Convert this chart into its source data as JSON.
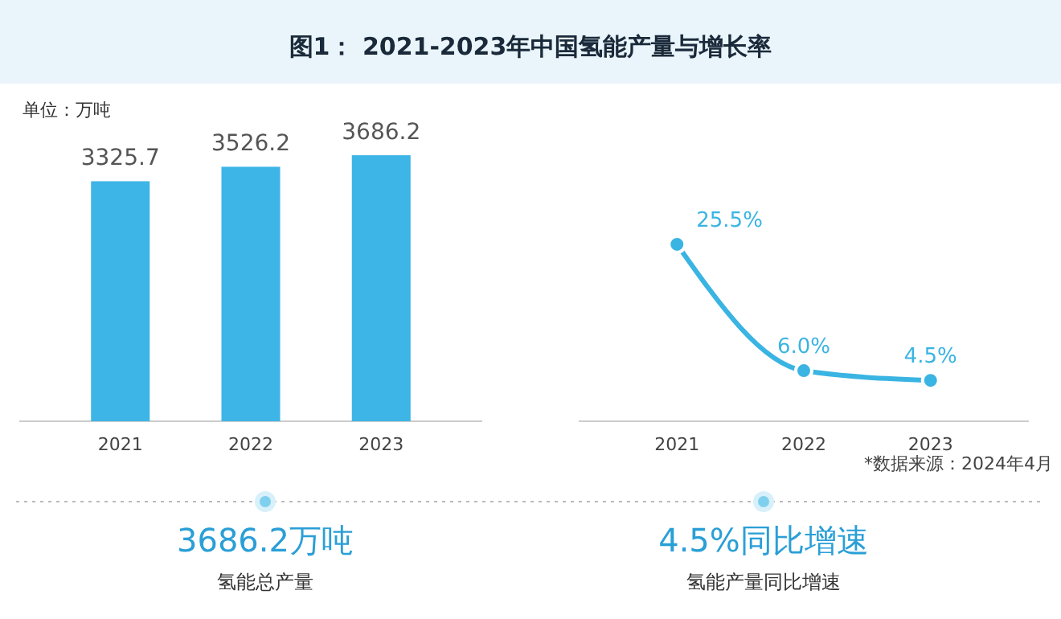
{
  "chart_data": [
    {
      "type": "bar",
      "title": "图1： 2021-2023年中国氢能产量与增长率",
      "ylabel": "单位：万吨",
      "categories": [
        "2021",
        "2022",
        "2023"
      ],
      "values": [
        3325.7,
        3526.2,
        3686.2
      ],
      "color": "#3db5e6",
      "tick_labels": "x",
      "data_labels": true
    },
    {
      "type": "line",
      "categories": [
        "2021",
        "2022",
        "2023"
      ],
      "values": [
        25.5,
        6.0,
        4.5
      ],
      "value_labels": [
        "25.5%",
        "6.0%",
        "4.5%"
      ],
      "color": "#3ab4e2",
      "tick_labels": "x",
      "marker": "circle",
      "line_style": "solid",
      "annotations": [
        "*数据来源：2024年4月"
      ]
    },
    {
      "type": "other",
      "title": "3686.2万吨",
      "subtitle": "氢能总产量"
    },
    {
      "type": "other",
      "title": "4.5%同比增速",
      "subtitle": "氢能产量同比增速"
    }
  ]
}
